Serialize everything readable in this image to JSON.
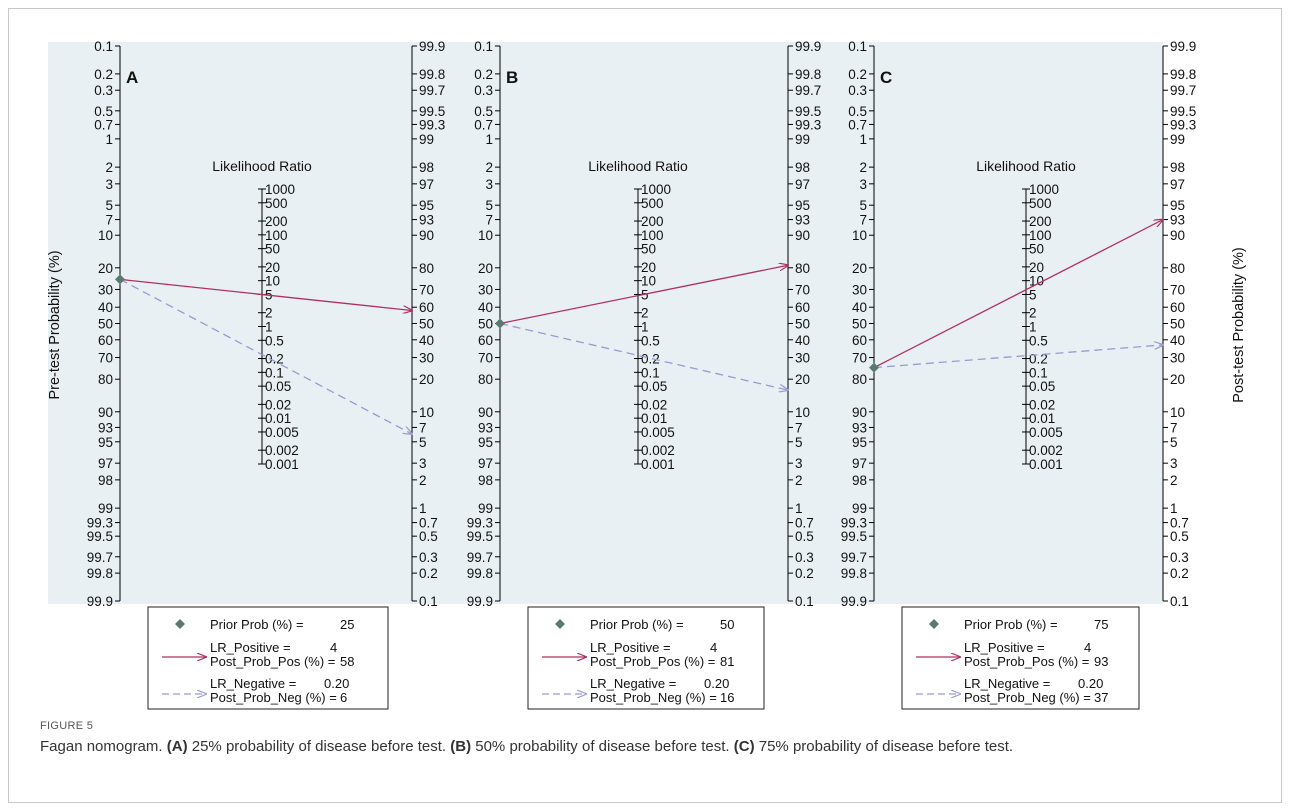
{
  "chart_data": [
    {
      "type": "fagan-nomogram",
      "panel_label": "A",
      "title": "Likelihood Ratio",
      "left_axis_label": "Pre-test Probability (%)",
      "right_axis_label": "",
      "prob_ticks_left": [
        "0.1",
        "0.2",
        "0.3",
        "0.5",
        "0.7",
        "1",
        "2",
        "3",
        "5",
        "7",
        "10",
        "20",
        "30",
        "40",
        "50",
        "60",
        "70",
        "80",
        "90",
        "93",
        "95",
        "97",
        "98",
        "99",
        "99.3",
        "99.5",
        "99.7",
        "99.8",
        "99.9"
      ],
      "prob_ticks_right": [
        "99.9",
        "99.8",
        "99.7",
        "99.5",
        "99.3",
        "99",
        "98",
        "97",
        "95",
        "93",
        "90",
        "80",
        "70",
        "60",
        "50",
        "40",
        "30",
        "20",
        "10",
        "7",
        "5",
        "3",
        "2",
        "1",
        "0.7",
        "0.5",
        "0.3",
        "0.2",
        "0.1"
      ],
      "lr_ticks": [
        "1000",
        "500",
        "200",
        "100",
        "50",
        "20",
        "10",
        "5",
        "2",
        "1",
        "0.5",
        "0.2",
        "0.1",
        "0.05",
        "0.02",
        "0.01",
        "0.005",
        "0.002",
        "0.001"
      ],
      "prior_prob": 25,
      "lr_positive": 4,
      "post_prob_pos": 58,
      "lr_negative": 0.2,
      "post_prob_neg": 6,
      "legend": {
        "prior": "Prior Prob (%) =",
        "prior_val": "25",
        "lr_pos": "LR_Positive =",
        "lr_pos_val": "4",
        "post_pos": "Post_Prob_Pos (%) =",
        "post_pos_val": "58",
        "lr_neg": "LR_Negative =",
        "lr_neg_val": "0.20",
        "post_neg": "Post_Prob_Neg (%) =",
        "post_neg_val": "6"
      }
    },
    {
      "type": "fagan-nomogram",
      "panel_label": "B",
      "title": "Likelihood Ratio",
      "left_axis_label": "",
      "right_axis_label": "",
      "prob_ticks_left": [
        "0.1",
        "0.2",
        "0.3",
        "0.5",
        "0.7",
        "1",
        "2",
        "3",
        "5",
        "7",
        "10",
        "20",
        "30",
        "40",
        "50",
        "60",
        "70",
        "80",
        "90",
        "93",
        "95",
        "97",
        "98",
        "99",
        "99.3",
        "99.5",
        "99.7",
        "99.8",
        "99.9"
      ],
      "prob_ticks_right": [
        "99.9",
        "99.8",
        "99.7",
        "99.5",
        "99.3",
        "99",
        "98",
        "97",
        "95",
        "93",
        "90",
        "80",
        "70",
        "60",
        "50",
        "40",
        "30",
        "20",
        "10",
        "7",
        "5",
        "3",
        "2",
        "1",
        "0.7",
        "0.5",
        "0.3",
        "0.2",
        "0.1"
      ],
      "lr_ticks": [
        "1000",
        "500",
        "200",
        "100",
        "50",
        "20",
        "10",
        "5",
        "2",
        "1",
        "0.5",
        "0.2",
        "0.1",
        "0.05",
        "0.02",
        "0.01",
        "0.005",
        "0.002",
        "0.001"
      ],
      "prior_prob": 50,
      "lr_positive": 4,
      "post_prob_pos": 81,
      "lr_negative": 0.2,
      "post_prob_neg": 16,
      "legend": {
        "prior": "Prior Prob (%) =",
        "prior_val": "50",
        "lr_pos": "LR_Positive =",
        "lr_pos_val": "4",
        "post_pos": "Post_Prob_Pos (%) =",
        "post_pos_val": "81",
        "lr_neg": "LR_Negative =",
        "lr_neg_val": "0.20",
        "post_neg": "Post_Prob_Neg (%) =",
        "post_neg_val": "16"
      }
    },
    {
      "type": "fagan-nomogram",
      "panel_label": "C",
      "title": "Likelihood Ratio",
      "left_axis_label": "",
      "right_axis_label": "Post-test Probability (%)",
      "prob_ticks_left": [
        "0.1",
        "0.2",
        "0.3",
        "0.5",
        "0.7",
        "1",
        "2",
        "3",
        "5",
        "7",
        "10",
        "20",
        "30",
        "40",
        "50",
        "60",
        "70",
        "80",
        "90",
        "93",
        "95",
        "97",
        "98",
        "99",
        "99.3",
        "99.5",
        "99.7",
        "99.8",
        "99.9"
      ],
      "prob_ticks_right": [
        "99.9",
        "99.8",
        "99.7",
        "99.5",
        "99.3",
        "99",
        "98",
        "97",
        "95",
        "93",
        "90",
        "80",
        "70",
        "60",
        "50",
        "40",
        "30",
        "20",
        "10",
        "7",
        "5",
        "3",
        "2",
        "1",
        "0.7",
        "0.5",
        "0.3",
        "0.2",
        "0.1"
      ],
      "lr_ticks": [
        "1000",
        "500",
        "200",
        "100",
        "50",
        "20",
        "10",
        "5",
        "2",
        "1",
        "0.5",
        "0.2",
        "0.1",
        "0.05",
        "0.02",
        "0.01",
        "0.005",
        "0.002",
        "0.001"
      ],
      "prior_prob": 75,
      "lr_positive": 4,
      "post_prob_pos": 93,
      "lr_negative": 0.2,
      "post_prob_neg": 37,
      "legend": {
        "prior": "Prior Prob (%) =",
        "prior_val": "75",
        "lr_pos": "LR_Positive =",
        "lr_pos_val": "4",
        "post_pos": "Post_Prob_Pos (%) =",
        "post_pos_val": "93",
        "lr_neg": "LR_Negative =",
        "lr_neg_val": "0.20",
        "post_neg": "Post_Prob_Neg (%) =",
        "post_neg_val": "37"
      }
    }
  ],
  "colors": {
    "plot_background": "#e9f0f3",
    "positive_line": "#b03060",
    "negative_line": "#9a9ad2",
    "prior_marker": "#5a7a70",
    "axis": "#000000"
  },
  "caption": {
    "figure_label": "FIGURE 5",
    "lead": "Fagan nomogram.",
    "a_label": "(A)",
    "a_text": "25% probability of disease before test.",
    "b_label": "(B)",
    "b_text": "50% probability of disease before test.",
    "c_label": "(C)",
    "c_text": "75% probability of disease before test."
  }
}
